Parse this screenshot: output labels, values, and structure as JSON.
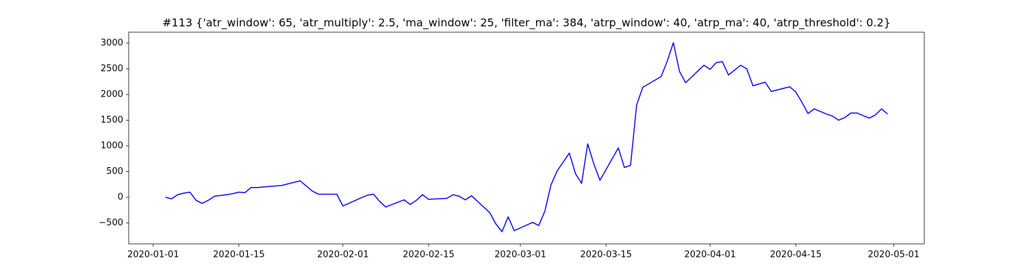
{
  "chart_data": {
    "type": "line",
    "title": "#113 {'atr_window': 65, 'atr_multiply': 2.5, 'ma_window': 25, 'filter_ma': 384, 'atrp_window': 40, 'atrp_ma': 40, 'atrp_threshold': 0.2}",
    "x": [
      "2020-01-03",
      "2020-01-04",
      "2020-01-05",
      "2020-01-06",
      "2020-01-07",
      "2020-01-08",
      "2020-01-09",
      "2020-01-10",
      "2020-01-11",
      "2020-01-13",
      "2020-01-14",
      "2020-01-15",
      "2020-01-16",
      "2020-01-17",
      "2020-01-18",
      "2020-01-21",
      "2020-01-22",
      "2020-01-24",
      "2020-01-25",
      "2020-01-27",
      "2020-01-28",
      "2020-01-29",
      "2020-01-30",
      "2020-01-31",
      "2020-02-01",
      "2020-02-04",
      "2020-02-05",
      "2020-02-06",
      "2020-02-07",
      "2020-02-08",
      "2020-02-11",
      "2020-02-12",
      "2020-02-13",
      "2020-02-14",
      "2020-02-15",
      "2020-02-18",
      "2020-02-19",
      "2020-02-20",
      "2020-02-21",
      "2020-02-22",
      "2020-02-25",
      "2020-02-26",
      "2020-02-27",
      "2020-02-28",
      "2020-02-29",
      "2020-03-03",
      "2020-03-04",
      "2020-03-05",
      "2020-03-06",
      "2020-03-07",
      "2020-03-09",
      "2020-03-10",
      "2020-03-11",
      "2020-03-12",
      "2020-03-13",
      "2020-03-14",
      "2020-03-17",
      "2020-03-18",
      "2020-03-19",
      "2020-03-20",
      "2020-03-21",
      "2020-03-24",
      "2020-03-25",
      "2020-03-26",
      "2020-03-27",
      "2020-03-28",
      "2020-03-31",
      "2020-04-01",
      "2020-04-02",
      "2020-04-03",
      "2020-04-04",
      "2020-04-06",
      "2020-04-07",
      "2020-04-08",
      "2020-04-10",
      "2020-04-11",
      "2020-04-14",
      "2020-04-15",
      "2020-04-16",
      "2020-04-17",
      "2020-04-18",
      "2020-04-20",
      "2020-04-21",
      "2020-04-22",
      "2020-04-23",
      "2020-04-24",
      "2020-04-25",
      "2020-04-27",
      "2020-04-28",
      "2020-04-29",
      "2020-04-30"
    ],
    "series": [
      {
        "color": "#0000ff",
        "values": [
          0,
          -30,
          50,
          80,
          100,
          -60,
          -120,
          -60,
          20,
          50,
          70,
          100,
          90,
          190,
          190,
          220,
          230,
          290,
          320,
          120,
          60,
          60,
          60,
          60,
          -170,
          -10,
          40,
          60,
          -80,
          -190,
          -50,
          -140,
          -60,
          50,
          -40,
          -20,
          50,
          20,
          -50,
          30,
          -300,
          -520,
          -670,
          -380,
          -650,
          -490,
          -550,
          -270,
          240,
          510,
          860,
          460,
          270,
          1040,
          650,
          330,
          960,
          580,
          620,
          1800,
          2140,
          2350,
          2650,
          3010,
          2450,
          2230,
          2570,
          2490,
          2620,
          2640,
          2380,
          2570,
          2500,
          2170,
          2240,
          2060,
          2150,
          2050,
          1850,
          1630,
          1720,
          1620,
          1580,
          1500,
          1550,
          1640,
          1640,
          1540,
          1600,
          1720,
          1620
        ]
      }
    ],
    "xlim": [
      "2019-12-28",
      "2020-05-06"
    ],
    "xticks": [
      "2020-01-01",
      "2020-01-15",
      "2020-02-01",
      "2020-02-15",
      "2020-03-01",
      "2020-03-15",
      "2020-04-01",
      "2020-04-15",
      "2020-05-01"
    ],
    "ylim": [
      -907,
      3213
    ],
    "yticks": [
      {
        "value": -500,
        "label": "−500"
      },
      0,
      500,
      1000,
      1500,
      2000,
      2500,
      3000
    ]
  }
}
